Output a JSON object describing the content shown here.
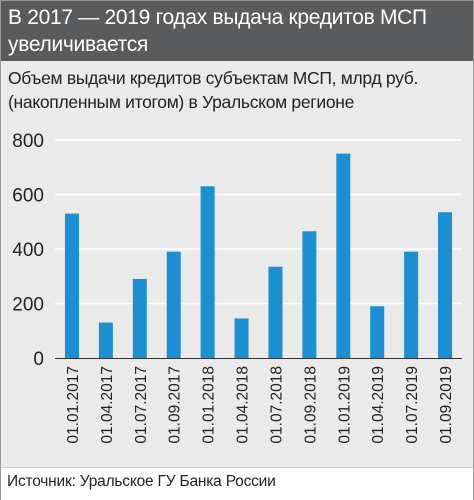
{
  "header": {
    "title": "В 2017 — 2019 годах выдача кредитов МСП увеличивается"
  },
  "subtitle": "Объем выдачи кредитов субъектам МСП, млрд руб. (накопленным итогом) в Уральском регионе",
  "source": "Источник: Уральское ГУ Банка России",
  "chart_data": {
    "type": "bar",
    "title": "Объем выдачи кредитов субъектам МСП, млрд руб. (накопленным итогом) в Уральском регионе",
    "xlabel": "",
    "ylabel": "",
    "categories": [
      "01.01.2017",
      "01.04.2017",
      "01.07.2017",
      "01.09.2017",
      "01.01.2018",
      "01.04.2018",
      "01.07.2018",
      "01.09.2018",
      "01.01.2019",
      "01.04.2019",
      "01.07.2019",
      "01.09.2019"
    ],
    "values": [
      530,
      130,
      290,
      390,
      630,
      145,
      335,
      465,
      750,
      190,
      390,
      535
    ],
    "ylim": [
      0,
      800
    ],
    "yticks": [
      0,
      200,
      400,
      600,
      800
    ],
    "grid": true,
    "bar_color": "#1b8fd1"
  }
}
